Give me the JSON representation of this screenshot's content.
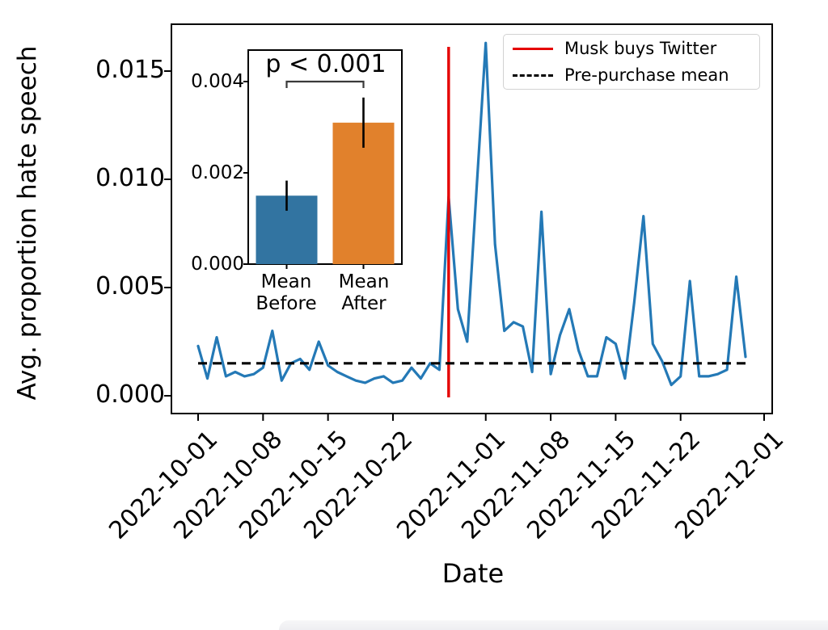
{
  "chart_data": [
    {
      "type": "line",
      "title": "",
      "xlabel": "Date",
      "ylabel": "Avg. proportion hate speech",
      "grid": false,
      "line_color": "#2479b6",
      "ylim": [
        -0.0008,
        0.0172
      ],
      "x_tick_labels": [
        "2022-10-01",
        "2022-10-08",
        "2022-10-15",
        "2022-10-22",
        "2022-11-01",
        "2022-11-08",
        "2022-11-15",
        "2022-11-22",
        "2022-12-01"
      ],
      "y_tick_labels": [
        "0.000",
        "0.005",
        "0.010",
        "0.015"
      ],
      "vline": {
        "label": "Musk buys Twitter",
        "x": "2022-10-28",
        "color": "#e50000",
        "style": "solid"
      },
      "hline": {
        "label": "Pre-purchase mean",
        "y": 0.0015,
        "color": "#000000",
        "style": "dashed"
      },
      "x": [
        "2022-10-01",
        "2022-10-02",
        "2022-10-03",
        "2022-10-04",
        "2022-10-05",
        "2022-10-06",
        "2022-10-07",
        "2022-10-08",
        "2022-10-09",
        "2022-10-10",
        "2022-10-11",
        "2022-10-12",
        "2022-10-13",
        "2022-10-14",
        "2022-10-15",
        "2022-10-16",
        "2022-10-17",
        "2022-10-18",
        "2022-10-19",
        "2022-10-20",
        "2022-10-21",
        "2022-10-22",
        "2022-10-23",
        "2022-10-24",
        "2022-10-25",
        "2022-10-26",
        "2022-10-27",
        "2022-10-28",
        "2022-10-29",
        "2022-10-30",
        "2022-10-31",
        "2022-11-01",
        "2022-11-02",
        "2022-11-03",
        "2022-11-04",
        "2022-11-05",
        "2022-11-06",
        "2022-11-07",
        "2022-11-08",
        "2022-11-09",
        "2022-11-10",
        "2022-11-11",
        "2022-11-12",
        "2022-11-13",
        "2022-11-14",
        "2022-11-15",
        "2022-11-16",
        "2022-11-17",
        "2022-11-18",
        "2022-11-19",
        "2022-11-20",
        "2022-11-21",
        "2022-11-22",
        "2022-11-23",
        "2022-11-24",
        "2022-11-25",
        "2022-11-26",
        "2022-11-27",
        "2022-11-28",
        "2022-11-29"
      ],
      "y": [
        0.0023,
        0.0008,
        0.0027,
        0.0009,
        0.0011,
        0.0009,
        0.001,
        0.0013,
        0.003,
        0.0007,
        0.0015,
        0.0017,
        0.0012,
        0.0025,
        0.0014,
        0.0011,
        0.0009,
        0.0007,
        0.0006,
        0.0008,
        0.0009,
        0.0006,
        0.0007,
        0.0013,
        0.0008,
        0.0015,
        0.0012,
        0.0092,
        0.004,
        0.0025,
        0.0095,
        0.0163,
        0.007,
        0.003,
        0.0034,
        0.0032,
        0.0011,
        0.0085,
        0.001,
        0.0028,
        0.004,
        0.0021,
        0.0009,
        0.0009,
        0.0027,
        0.0024,
        0.0008,
        0.0043,
        0.0083,
        0.0024,
        0.0016,
        0.0005,
        0.0009,
        0.0053,
        0.0009,
        0.0009,
        0.001,
        0.0012,
        0.0055,
        0.0018
      ]
    },
    {
      "type": "bar",
      "annotation": "p < 0.001",
      "categories": [
        "Mean\nBefore",
        "Mean\nAfter"
      ],
      "values": [
        0.0015,
        0.0031
      ],
      "errors": [
        0.00033,
        0.00055
      ],
      "bar_colors": [
        "#3274a1",
        "#e1812c"
      ],
      "error_color": "#000000",
      "y_tick_labels": [
        "0.000",
        "0.002",
        "0.004"
      ],
      "ylim": [
        0,
        0.0047
      ],
      "grid": false
    }
  ],
  "legend": {
    "position": "upper right",
    "items": [
      {
        "label": "Musk buys Twitter",
        "color": "#e50000",
        "style": "solid"
      },
      {
        "label": "Pre-purchase mean",
        "color": "#000000",
        "style": "dashed"
      }
    ]
  }
}
